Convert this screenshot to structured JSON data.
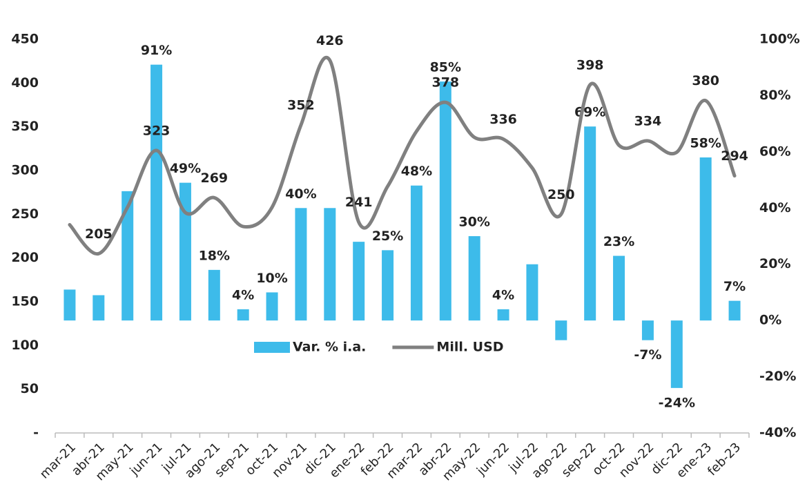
{
  "chart_data": {
    "type": "bar-line",
    "categories": [
      "mar-21",
      "abr-21",
      "may-21",
      "jun-21",
      "jul-21",
      "ago-21",
      "sep-21",
      "oct-21",
      "nov-21",
      "dic-21",
      "ene-22",
      "feb-22",
      "mar-22",
      "abr-22",
      "may-22",
      "jun-22",
      "jul-22",
      "ago-22",
      "sep-22",
      "oct-22",
      "nov-22",
      "dic-22",
      "ene-23",
      "feb-23"
    ],
    "series": [
      {
        "name": "Var. % i.a.",
        "type": "bar",
        "axis": "y2",
        "color": "#3dbbea",
        "values": [
          11,
          9,
          46,
          91,
          49,
          18,
          4,
          10,
          40,
          40,
          28,
          25,
          48,
          85,
          30,
          4,
          20,
          -7,
          69,
          23,
          -7,
          -24,
          58,
          7
        ],
        "value_labels": [
          null,
          null,
          null,
          "91%",
          "49%",
          "18%",
          "4%",
          "10%",
          "40%",
          null,
          null,
          "25%",
          "48%",
          "85%",
          "30%",
          "4%",
          null,
          null,
          "69%",
          "23%",
          "-7%",
          "-24%",
          "58%",
          "7%"
        ]
      },
      {
        "name": "Mill. USD",
        "type": "line",
        "axis": "y",
        "color": "#808080",
        "values": [
          238,
          205,
          258,
          323,
          252,
          269,
          236,
          258,
          352,
          426,
          241,
          282,
          345,
          378,
          338,
          336,
          303,
          250,
          398,
          329,
          334,
          321,
          380,
          294
        ],
        "value_labels": [
          null,
          "205",
          null,
          "323",
          null,
          "269",
          null,
          null,
          "352",
          "426",
          "241",
          null,
          null,
          "378",
          null,
          "336",
          null,
          "250",
          "398",
          null,
          "334",
          null,
          "380",
          "294"
        ]
      }
    ],
    "ylim": [
      0,
      450
    ],
    "yticks": [
      {
        "value": 0,
        "label": "-"
      },
      50,
      100,
      150,
      200,
      250,
      300,
      350,
      400,
      450
    ],
    "y2lim": [
      -40,
      100
    ],
    "y2ticks": [
      {
        "value": -40,
        "label": "-40%"
      },
      {
        "value": -20,
        "label": "-20%"
      },
      {
        "value": 0,
        "label": "0%"
      },
      {
        "value": 20,
        "label": "20%"
      },
      {
        "value": 40,
        "label": "40%"
      },
      {
        "value": 60,
        "label": "60%"
      },
      {
        "value": 80,
        "label": "80%"
      },
      {
        "value": 100,
        "label": "100%"
      }
    ],
    "legend": "center"
  }
}
